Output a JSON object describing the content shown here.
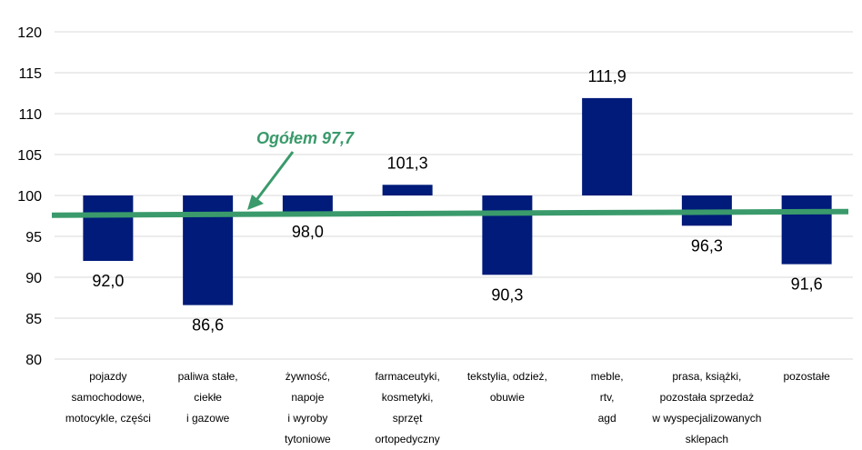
{
  "chart_data": {
    "type": "bar",
    "baseline": 100,
    "ylim": [
      80,
      120
    ],
    "yticks": [
      "80",
      "85",
      "90",
      "95",
      "100",
      "105",
      "110",
      "115",
      "120"
    ],
    "grid": true,
    "categories": [
      [
        "pojazdy",
        "samochodowe,",
        "motocykle, części"
      ],
      [
        "paliwa stałe,",
        "ciekłe",
        "i gazowe"
      ],
      [
        "żywność,",
        "napoje",
        "i wyroby",
        "tytoniowe"
      ],
      [
        "farmaceutyki,",
        "kosmetyki,",
        "sprzęt",
        "ortopedyczny"
      ],
      [
        "tekstylia, odzież,",
        "obuwie"
      ],
      [
        "meble,",
        "rtv,",
        "agd"
      ],
      [
        "prasa, książki,",
        "pozostała sprzedaż",
        "w wyspecjalizowanych",
        "sklepach"
      ],
      [
        "pozostałe"
      ]
    ],
    "values": [
      92.0,
      86.6,
      98.0,
      101.3,
      90.3,
      111.9,
      96.3,
      91.6
    ],
    "data_labels": [
      "92,0",
      "86,6",
      "98,0",
      "101,3",
      "90,3",
      "111,9",
      "96,3",
      "91,6"
    ],
    "reference_line": {
      "label": "Ogółem 97,7",
      "value": 97.7
    },
    "colors": {
      "bar": "#001B7A",
      "line": "#3A9A6B",
      "grid": "#D9D9D9"
    },
    "title": "",
    "xlabel": "",
    "ylabel": ""
  }
}
